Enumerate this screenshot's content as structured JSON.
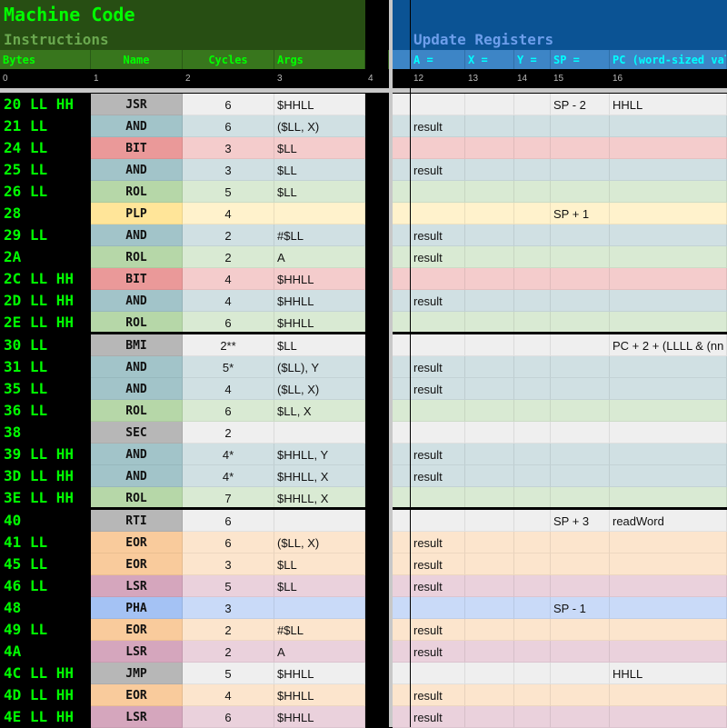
{
  "header": {
    "title": "Machine Code",
    "instructions": "Instructions",
    "update_registers": "Update Registers"
  },
  "columns_left": [
    "Bytes",
    "Name",
    "Cycles",
    "Args"
  ],
  "columns_right": [
    "A =",
    "X =",
    "Y =",
    "SP =",
    "PC (word-sized val"
  ],
  "col_numbers_left": [
    "0",
    "1",
    "2",
    "3",
    "4"
  ],
  "col_numbers_right": [
    "12",
    "13",
    "14",
    "15",
    "16"
  ],
  "colors": {
    "dark_green": "#274e13",
    "green": "#38761d",
    "text_green": "#00ff00",
    "dark_blue": "#0b5394",
    "blue": "#3d85c6",
    "text_cyan": "#00ffff"
  },
  "groups": [
    [
      {
        "bytes": "20 LL HH",
        "name": "JSR",
        "cycles": "6",
        "args": "$HHLL",
        "a": "",
        "sp": "SP - 2",
        "pc": "HHLL",
        "color": "gray"
      },
      {
        "bytes": "21 LL",
        "name": "AND",
        "cycles": "6",
        "args": "($LL, X)",
        "a": "result",
        "sp": "",
        "pc": "",
        "color": "teal"
      },
      {
        "bytes": "24 LL",
        "name": "BIT",
        "cycles": "3",
        "args": "$LL",
        "a": "",
        "sp": "",
        "pc": "",
        "color": "red"
      },
      {
        "bytes": "25 LL",
        "name": "AND",
        "cycles": "3",
        "args": "$LL",
        "a": "result",
        "sp": "",
        "pc": "",
        "color": "teal"
      },
      {
        "bytes": "26 LL",
        "name": "ROL",
        "cycles": "5",
        "args": "$LL",
        "a": "",
        "sp": "",
        "pc": "",
        "color": "green"
      },
      {
        "bytes": "28",
        "name": "PLP",
        "cycles": "4",
        "args": "",
        "a": "",
        "sp": "SP + 1",
        "pc": "",
        "color": "yellow"
      },
      {
        "bytes": "29 LL",
        "name": "AND",
        "cycles": "2",
        "args": "#$LL",
        "a": "result",
        "sp": "",
        "pc": "",
        "color": "teal"
      },
      {
        "bytes": "2A",
        "name": "ROL",
        "cycles": "2",
        "args": "A",
        "a": "result",
        "sp": "",
        "pc": "",
        "color": "green"
      },
      {
        "bytes": "2C LL HH",
        "name": "BIT",
        "cycles": "4",
        "args": "$HHLL",
        "a": "",
        "sp": "",
        "pc": "",
        "color": "red"
      },
      {
        "bytes": "2D LL HH",
        "name": "AND",
        "cycles": "4",
        "args": "$HHLL",
        "a": "result",
        "sp": "",
        "pc": "",
        "color": "teal"
      },
      {
        "bytes": "2E LL HH",
        "name": "ROL",
        "cycles": "6",
        "args": "$HHLL",
        "a": "",
        "sp": "",
        "pc": "",
        "color": "green"
      }
    ],
    [
      {
        "bytes": "30 LL",
        "name": "BMI",
        "cycles": "2**",
        "args": "$LL",
        "a": "",
        "sp": "",
        "pc": "PC + 2 + (LLLL & (nn",
        "color": "gray"
      },
      {
        "bytes": "31 LL",
        "name": "AND",
        "cycles": "5*",
        "args": "($LL), Y",
        "a": "result",
        "sp": "",
        "pc": "",
        "color": "teal"
      },
      {
        "bytes": "35 LL",
        "name": "AND",
        "cycles": "4",
        "args": "($LL, X)",
        "a": "result",
        "sp": "",
        "pc": "",
        "color": "teal"
      },
      {
        "bytes": "36 LL",
        "name": "ROL",
        "cycles": "6",
        "args": "$LL, X",
        "a": "",
        "sp": "",
        "pc": "",
        "color": "green"
      },
      {
        "bytes": "38",
        "name": "SEC",
        "cycles": "2",
        "args": "",
        "a": "",
        "sp": "",
        "pc": "",
        "color": "gray"
      },
      {
        "bytes": "39 LL HH",
        "name": "AND",
        "cycles": "4*",
        "args": "$HHLL, Y",
        "a": "result",
        "sp": "",
        "pc": "",
        "color": "teal"
      },
      {
        "bytes": "3D LL HH",
        "name": "AND",
        "cycles": "4*",
        "args": "$HHLL, X",
        "a": "result",
        "sp": "",
        "pc": "",
        "color": "teal"
      },
      {
        "bytes": "3E LL HH",
        "name": "ROL",
        "cycles": "7",
        "args": "$HHLL, X",
        "a": "",
        "sp": "",
        "pc": "",
        "color": "green"
      }
    ],
    [
      {
        "bytes": "40",
        "name": "RTI",
        "cycles": "6",
        "args": "",
        "a": "",
        "sp": "SP + 3",
        "pc": "readWord",
        "color": "gray"
      },
      {
        "bytes": "41 LL",
        "name": "EOR",
        "cycles": "6",
        "args": "($LL, X)",
        "a": "result",
        "sp": "",
        "pc": "",
        "color": "orange"
      },
      {
        "bytes": "45 LL",
        "name": "EOR",
        "cycles": "3",
        "args": "$LL",
        "a": "result",
        "sp": "",
        "pc": "",
        "color": "orange"
      },
      {
        "bytes": "46 LL",
        "name": "LSR",
        "cycles": "5",
        "args": "$LL",
        "a": "result",
        "sp": "",
        "pc": "",
        "color": "pink"
      },
      {
        "bytes": "48",
        "name": "PHA",
        "cycles": "3",
        "args": "",
        "a": "",
        "sp": "SP - 1",
        "pc": "",
        "color": "blue"
      },
      {
        "bytes": "49 LL",
        "name": "EOR",
        "cycles": "2",
        "args": "#$LL",
        "a": "result",
        "sp": "",
        "pc": "",
        "color": "orange"
      },
      {
        "bytes": "4A",
        "name": "LSR",
        "cycles": "2",
        "args": "A",
        "a": "result",
        "sp": "",
        "pc": "",
        "color": "pink"
      },
      {
        "bytes": "4C LL HH",
        "name": "JMP",
        "cycles": "5",
        "args": "$HHLL",
        "a": "",
        "sp": "",
        "pc": "HHLL",
        "color": "gray"
      },
      {
        "bytes": "4D LL HH",
        "name": "EOR",
        "cycles": "4",
        "args": "$HHLL",
        "a": "result",
        "sp": "",
        "pc": "",
        "color": "orange"
      },
      {
        "bytes": "4E LL HH",
        "name": "LSR",
        "cycles": "6",
        "args": "$HHLL",
        "a": "result",
        "sp": "",
        "pc": "",
        "color": "pink"
      }
    ]
  ]
}
